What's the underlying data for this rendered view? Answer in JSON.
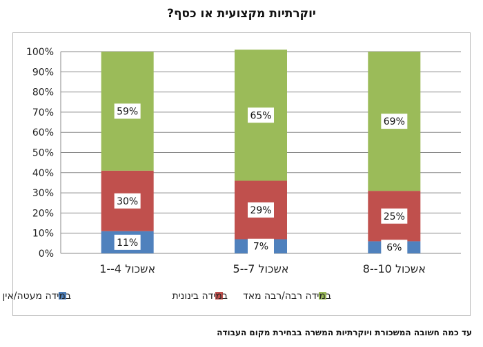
{
  "title": "יוקרתיות מקצועית או כסף?",
  "caption": "עד כמה חשובה המשכורת ויוקרתיות המשרה בבחירת מקום העבודה",
  "chart_data": {
    "type": "bar",
    "stacked": true,
    "categories": [
      "אשכול 4--1",
      "אשכול 7--5",
      "אשכול 10--8"
    ],
    "series": [
      {
        "name": "במידה מעטה/אין הפשעה",
        "values": [
          11,
          7,
          6
        ],
        "color": "#4f81bd"
      },
      {
        "name": "במידה בינונית",
        "values": [
          30,
          29,
          25
        ],
        "color": "#c0504d"
      },
      {
        "name": "במידה רבה/רבה מאד",
        "values": [
          59,
          65,
          69
        ],
        "color": "#9bbb59"
      }
    ],
    "y_ticks": [
      "0%",
      "10%",
      "20%",
      "30%",
      "40%",
      "50%",
      "60%",
      "70%",
      "80%",
      "90%",
      "100%"
    ],
    "ylim": [
      0,
      100
    ],
    "grid": true,
    "legend_position": "bottom"
  }
}
